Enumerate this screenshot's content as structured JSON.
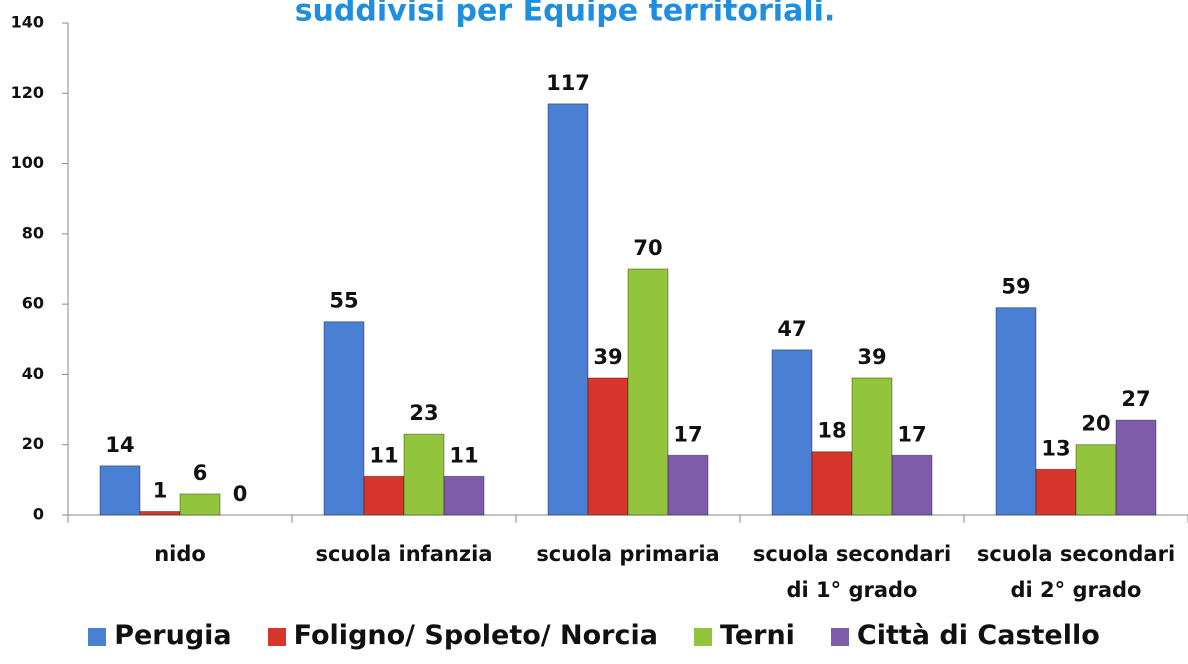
{
  "chart_data": {
    "type": "bar",
    "title": "suddivisi per Equipe territoriali.",
    "categories": [
      "nido",
      "scuola infanzia",
      "scuola primaria",
      "scuola secondari di 1° grado",
      "scuola secondari di 2° grado"
    ],
    "series": [
      {
        "name": "Perugia",
        "color": "#4a80d3",
        "values": [
          14,
          55,
          117,
          47,
          59
        ]
      },
      {
        "name": "Foligno/ Spoleto/ Norcia",
        "color": "#d8352c",
        "values": [
          1,
          11,
          39,
          18,
          13
        ]
      },
      {
        "name": "Terni",
        "color": "#92c53c",
        "values": [
          6,
          23,
          70,
          39,
          20
        ]
      },
      {
        "name": "Città di Castello",
        "color": "#7e5bab",
        "values": [
          0,
          11,
          17,
          17,
          27
        ]
      }
    ],
    "ylim": [
      0,
      140
    ],
    "yticks": [
      0,
      20,
      40,
      60,
      80,
      100,
      120,
      140
    ]
  }
}
